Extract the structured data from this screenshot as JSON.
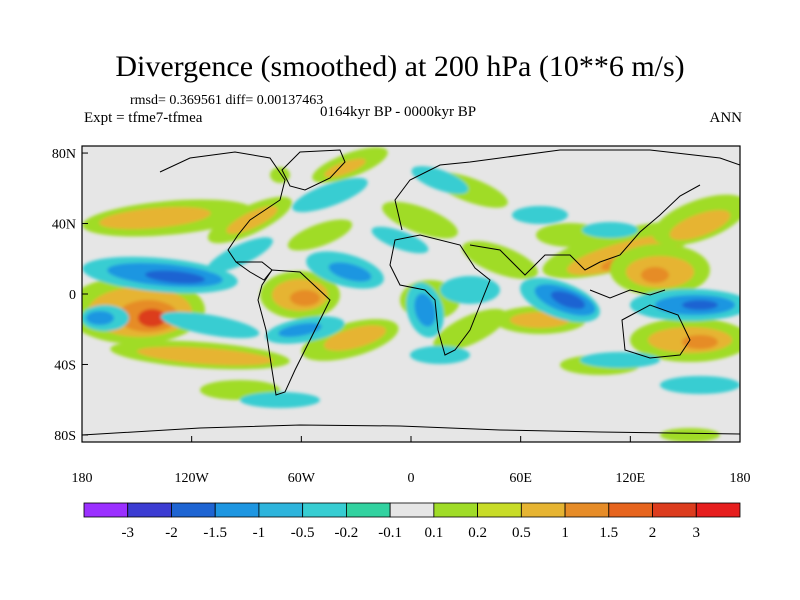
{
  "title": "Divergence (smoothed) at 200 hPa (10**6 m/s)",
  "stats": "rmsd= 0.369561 diff= 0.00137463",
  "experiment": "Expt = tfme7-tfmea",
  "period": "0164kyr BP - 0000kyr BP",
  "season": "ANN",
  "map": {
    "projection": "cylindrical equidistant",
    "background_color": "#e6e6e6",
    "lat_tick_labels": [
      "80N",
      "40N",
      "0",
      "40S",
      "80S"
    ],
    "lon_tick_labels": [
      "180",
      "120W",
      "60W",
      "0",
      "60E",
      "120E",
      "180"
    ]
  },
  "colorbar": {
    "labels": [
      "-3",
      "-2",
      "-1.5",
      "-1",
      "-0.5",
      "-0.2",
      "-0.1",
      "0.1",
      "0.2",
      "0.5",
      "1",
      "1.5",
      "2",
      "3"
    ],
    "colors": [
      "#9b30ff",
      "#3c3cd2",
      "#1e64d2",
      "#1e96e1",
      "#2db4dc",
      "#37cdd2",
      "#32d2a0",
      "#e6e6e6",
      "#a0dc28",
      "#c8dc28",
      "#e6b432",
      "#e68c28",
      "#e6641e",
      "#dc3c1e",
      "#e61e1e"
    ]
  }
}
